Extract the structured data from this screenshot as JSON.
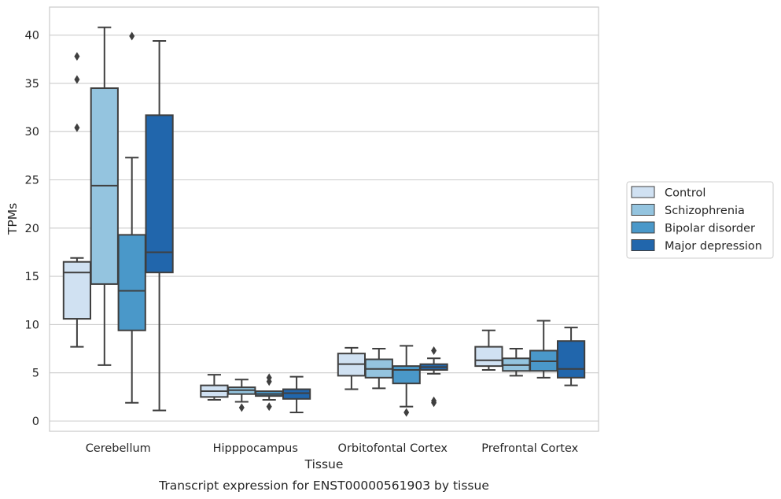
{
  "chart_data": {
    "type": "boxplot",
    "caption": "Transcript expression for ENST00000561903 by tissue",
    "xlabel": "Tissue",
    "ylabel": "TPMs",
    "ylim": [
      -1,
      43
    ],
    "yticks": [
      0,
      5,
      10,
      15,
      20,
      25,
      30,
      35,
      40
    ],
    "grid": true,
    "legend_position": "right",
    "categories": [
      "Cerebellum",
      "Hipppocampus",
      "Orbitofontal Cortex",
      "Prefrontal Cortex"
    ],
    "series": [
      {
        "name": "Control",
        "color": "#d0e1f2",
        "boxes": [
          {
            "whislo": 7.7,
            "q1": 10.6,
            "med": 15.4,
            "q3": 16.5,
            "whishi": 16.9,
            "fliers": [
              30.4,
              35.4,
              37.8
            ]
          },
          {
            "whislo": 2.2,
            "q1": 2.5,
            "med": 3.1,
            "q3": 3.7,
            "whishi": 4.8,
            "fliers": []
          },
          {
            "whislo": 3.3,
            "q1": 4.7,
            "med": 5.9,
            "q3": 7.0,
            "whishi": 7.6,
            "fliers": []
          },
          {
            "whislo": 5.3,
            "q1": 5.7,
            "med": 6.3,
            "q3": 7.7,
            "whishi": 9.4,
            "fliers": []
          }
        ]
      },
      {
        "name": "Schizophrenia",
        "color": "#94c4df",
        "boxes": [
          {
            "whislo": 5.8,
            "q1": 14.2,
            "med": 24.4,
            "q3": 34.5,
            "whishi": 40.8,
            "fliers": []
          },
          {
            "whislo": 2.0,
            "q1": 2.8,
            "med": 3.2,
            "q3": 3.5,
            "whishi": 4.3,
            "fliers": [
              1.4
            ]
          },
          {
            "whislo": 3.4,
            "q1": 4.5,
            "med": 5.4,
            "q3": 6.4,
            "whishi": 7.5,
            "fliers": []
          },
          {
            "whislo": 4.7,
            "q1": 5.2,
            "med": 5.8,
            "q3": 6.5,
            "whishi": 7.5,
            "fliers": []
          }
        ]
      },
      {
        "name": "Bipolar disorder",
        "color": "#4a98c9",
        "boxes": [
          {
            "whislo": 1.9,
            "q1": 9.4,
            "med": 13.5,
            "q3": 19.3,
            "whishi": 27.3,
            "fliers": [
              39.9
            ]
          },
          {
            "whislo": 2.2,
            "q1": 2.6,
            "med": 2.8,
            "q3": 3.1,
            "whishi": 3.1,
            "fliers": [
              1.5,
              4.1,
              4.5
            ]
          },
          {
            "whislo": 1.5,
            "q1": 3.9,
            "med": 5.3,
            "q3": 5.7,
            "whishi": 7.8,
            "fliers": [
              0.9
            ]
          },
          {
            "whislo": 4.5,
            "q1": 5.2,
            "med": 6.2,
            "q3": 7.3,
            "whishi": 10.4,
            "fliers": []
          }
        ]
      },
      {
        "name": "Major depression",
        "color": "#2166ac",
        "boxes": [
          {
            "whislo": 1.1,
            "q1": 15.4,
            "med": 17.5,
            "q3": 31.7,
            "whishi": 39.4,
            "fliers": []
          },
          {
            "whislo": 0.9,
            "q1": 2.3,
            "med": 2.9,
            "q3": 3.3,
            "whishi": 4.6,
            "fliers": []
          },
          {
            "whislo": 4.9,
            "q1": 5.3,
            "med": 5.6,
            "q3": 5.9,
            "whishi": 6.5,
            "fliers": [
              1.9,
              2.1,
              7.3
            ]
          },
          {
            "whislo": 3.7,
            "q1": 4.5,
            "med": 5.4,
            "q3": 8.3,
            "whishi": 9.7,
            "fliers": []
          }
        ]
      }
    ]
  }
}
